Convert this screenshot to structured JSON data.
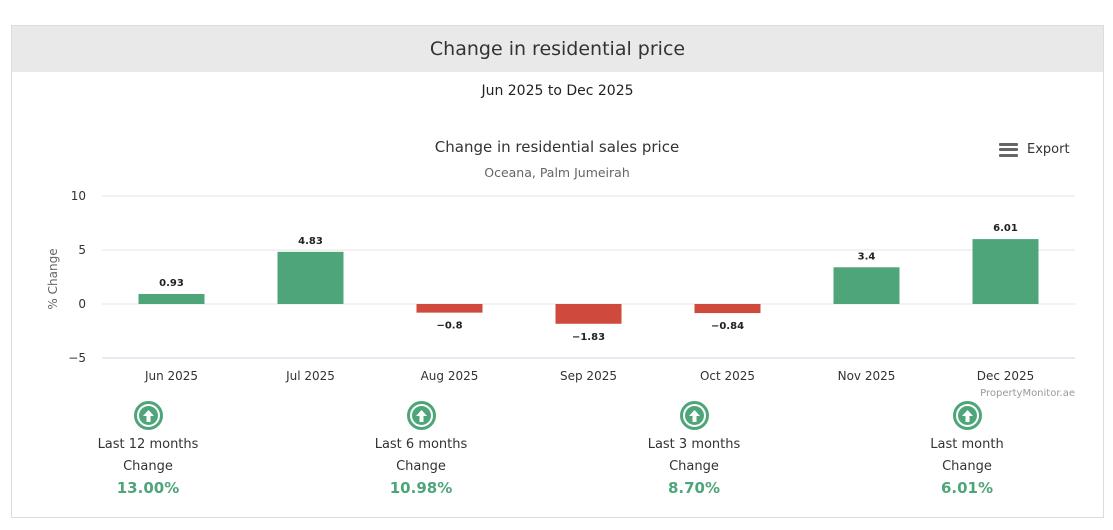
{
  "header": {
    "title": "Change in residential price"
  },
  "period": "Jun 2025 to Dec 2025",
  "export_label": "Export",
  "colors": {
    "positive": "#4fa57a",
    "negative": "#cf4a3d",
    "header_bg": "#e9e9e9"
  },
  "credit": "PropertyMonitor.ae",
  "chart_data": {
    "type": "bar",
    "title": "Change in residential sales price",
    "subtitle": "Oceana, Palm Jumeirah",
    "xlabel": "",
    "ylabel": "% Change",
    "ylim": [
      -5,
      10
    ],
    "yticks": [
      "10",
      "5",
      "0",
      "−5"
    ],
    "categories": [
      "Jun 2025",
      "Jul 2025",
      "Aug 2025",
      "Sep 2025",
      "Oct 2025",
      "Nov 2025",
      "Dec 2025"
    ],
    "values": [
      0.93,
      4.83,
      -0.8,
      -1.83,
      -0.84,
      3.4,
      6.01
    ],
    "value_labels": [
      "0.93",
      "4.83",
      "−0.8",
      "−1.83",
      "−0.84",
      "3.4",
      "6.01"
    ],
    "grid": true,
    "legend": "none"
  },
  "stats": [
    {
      "icon": "arrow-up-circle-icon",
      "label": "Last 12 months",
      "sub": "Change",
      "value": "13.00%"
    },
    {
      "icon": "arrow-up-circle-icon",
      "label": "Last 6 months",
      "sub": "Change",
      "value": "10.98%"
    },
    {
      "icon": "arrow-up-circle-icon",
      "label": "Last 3 months",
      "sub": "Change",
      "value": "8.70%"
    },
    {
      "icon": "arrow-up-circle-icon",
      "label": "Last month",
      "sub": "Change",
      "value": "6.01%"
    }
  ]
}
